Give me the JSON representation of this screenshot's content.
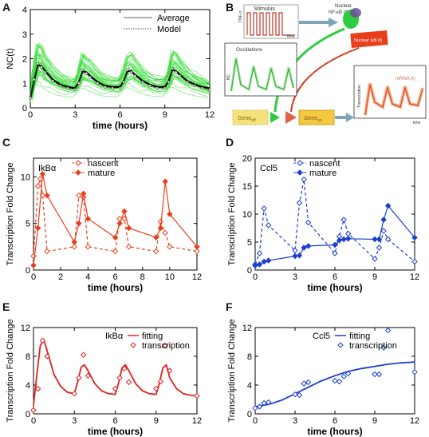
{
  "panel_letters": [
    "A",
    "B",
    "C",
    "D",
    "E",
    "F"
  ],
  "chart_data": [
    {
      "id": "A",
      "type": "line",
      "ylabel": "NC(t)",
      "xlabel": "time (hours)",
      "xlim": [
        0,
        12
      ],
      "ylim": [
        0,
        4
      ],
      "xticks": [
        0,
        3,
        6,
        9,
        12
      ],
      "yticks": [
        0,
        1,
        2,
        3,
        4
      ],
      "series": [
        {
          "name": "Average",
          "color": "#000000",
          "x": [
            0,
            0.25,
            0.5,
            0.75,
            1,
            1.5,
            2,
            2.5,
            3,
            3.25,
            3.5,
            3.75,
            4,
            4.5,
            5,
            5.5,
            6,
            6.25,
            6.5,
            6.75,
            7,
            7.5,
            8,
            8.5,
            9,
            9.25,
            9.5,
            9.75,
            10,
            10.5,
            11,
            11.5,
            12
          ],
          "y": [
            0.4,
            1.1,
            1.75,
            1.7,
            1.5,
            1.15,
            0.95,
            0.85,
            0.8,
            1.05,
            1.5,
            1.45,
            1.3,
            1.05,
            0.9,
            0.85,
            0.85,
            1.1,
            1.5,
            1.5,
            1.35,
            1.1,
            0.95,
            0.85,
            0.85,
            1.1,
            1.55,
            1.5,
            1.35,
            1.1,
            0.95,
            0.85,
            0.8
          ]
        },
        {
          "name": "Model",
          "color": "#555555",
          "x": [
            0,
            0.25,
            0.5,
            0.75,
            1,
            1.5,
            2,
            2.5,
            3,
            3.25,
            3.5,
            3.75,
            4,
            4.5,
            5,
            5.5,
            6,
            6.25,
            6.5,
            6.75,
            7,
            7.5,
            8,
            8.5,
            9,
            9.25,
            9.5,
            9.75,
            10,
            10.5,
            11,
            11.5,
            12
          ],
          "y": [
            0.4,
            1.15,
            1.8,
            1.65,
            1.45,
            1.1,
            0.9,
            0.8,
            0.75,
            1.0,
            1.55,
            1.4,
            1.25,
            1.0,
            0.85,
            0.8,
            0.8,
            1.05,
            1.55,
            1.45,
            1.3,
            1.05,
            0.9,
            0.8,
            0.8,
            1.05,
            1.6,
            1.45,
            1.3,
            1.05,
            0.9,
            0.8,
            0.75
          ]
        }
      ],
      "trace_color": "#33dd33",
      "trace_count": 36
    },
    {
      "id": "C",
      "type": "line",
      "title_text": "IkBα",
      "ylabel": "Transcription Fold Change",
      "xlabel": "time (hours)",
      "xlim": [
        0,
        12
      ],
      "ylim": [
        0,
        12
      ],
      "xticks": [
        0,
        2,
        4,
        6,
        8,
        10,
        12
      ],
      "yticks": [
        0,
        5,
        10
      ],
      "color": "#e8401c",
      "series": [
        {
          "name": "nascent",
          "style": "dashed",
          "marker": "open-diamond",
          "x": [
            0,
            0.33,
            0.5,
            0.67,
            1,
            3,
            3.33,
            3.67,
            4,
            6,
            6.33,
            6.67,
            7,
            9,
            9.33,
            9.67,
            10,
            12
          ],
          "y": [
            1.5,
            9.0,
            9.8,
            8.0,
            2.0,
            2.5,
            8.0,
            7.8,
            2.5,
            2.0,
            5.5,
            5.5,
            2.5,
            2.0,
            5.2,
            4.0,
            2.5,
            2.0
          ]
        },
        {
          "name": "mature",
          "style": "solid",
          "marker": "filled-diamond",
          "x": [
            0,
            0.33,
            0.67,
            1,
            3,
            3.33,
            3.67,
            4,
            6,
            6.33,
            6.67,
            7,
            9,
            9.33,
            9.67,
            10,
            12
          ],
          "y": [
            0.5,
            4.5,
            10.3,
            8.0,
            3.0,
            5.0,
            8.2,
            5.5,
            3.5,
            5.0,
            6.3,
            4.5,
            3.5,
            4.5,
            9.5,
            6.0,
            2.5
          ]
        }
      ]
    },
    {
      "id": "D",
      "type": "line",
      "title_text": "Ccl5",
      "ylabel": "Transcription Fold Change",
      "xlabel": "time (hours)",
      "xlim": [
        0,
        12
      ],
      "ylim": [
        0,
        20
      ],
      "xticks": [
        0,
        3,
        6,
        9,
        12
      ],
      "yticks": [
        0,
        5,
        10,
        15,
        20
      ],
      "color": "#1c3fd0",
      "series": [
        {
          "name": "nascent",
          "style": "dashed",
          "marker": "open-diamond",
          "x": [
            0,
            0.33,
            0.67,
            1,
            3,
            3.33,
            3.67,
            4,
            6,
            6.33,
            6.67,
            7,
            9,
            9.33,
            9.67,
            10,
            12
          ],
          "y": [
            1.0,
            3.0,
            11.0,
            8.0,
            3.5,
            12.0,
            16.2,
            8.5,
            3.0,
            6.0,
            9.0,
            6.5,
            2.0,
            4.0,
            7.0,
            5.5,
            1.5
          ]
        },
        {
          "name": "mature",
          "style": "solid",
          "marker": "filled-diamond",
          "x": [
            0,
            0.33,
            0.67,
            1,
            3,
            3.33,
            3.67,
            4,
            6,
            6.33,
            6.67,
            7,
            9,
            9.33,
            9.67,
            10,
            12
          ],
          "y": [
            0.8,
            1.0,
            1.5,
            1.7,
            2.5,
            2.6,
            4.0,
            4.3,
            4.5,
            5.3,
            5.5,
            5.6,
            5.5,
            5.5,
            9.0,
            11.5,
            5.8
          ]
        }
      ]
    },
    {
      "id": "E",
      "type": "line",
      "title_text": "IkBα",
      "ylabel": "Transcription Fold Change",
      "xlabel": "time (hours)",
      "xlim": [
        0,
        12
      ],
      "ylim": [
        0,
        12
      ],
      "xticks": [
        0,
        3,
        6,
        9,
        12
      ],
      "yticks": [
        0,
        4,
        8,
        12
      ],
      "color": "#e02020",
      "series": [
        {
          "name": "fitting",
          "style": "solid",
          "x": [
            0,
            0.25,
            0.5,
            0.75,
            1,
            1.5,
            2,
            2.5,
            3,
            3.25,
            3.5,
            3.75,
            4,
            4.5,
            5,
            5.5,
            6,
            6.25,
            6.5,
            6.75,
            7,
            7.5,
            8,
            8.5,
            9,
            9.25,
            9.5,
            9.75,
            10,
            10.5,
            11,
            11.5,
            12
          ],
          "y": [
            1.2,
            5.5,
            9.5,
            10.3,
            8.8,
            5.5,
            3.8,
            3.0,
            2.8,
            4.5,
            6.5,
            6.8,
            6.0,
            4.2,
            3.2,
            2.8,
            2.7,
            4.3,
            6.4,
            6.8,
            6.0,
            4.2,
            3.2,
            2.8,
            2.7,
            4.3,
            6.4,
            6.8,
            5.0,
            3.5,
            2.8,
            2.6,
            2.5
          ]
        },
        {
          "name": "transcription",
          "style": "none",
          "marker": "open-diamond",
          "x": [
            0,
            0.33,
            0.67,
            1,
            3,
            3.33,
            3.67,
            4,
            6,
            6.33,
            6.67,
            7,
            9,
            9.33,
            9.67,
            10,
            12
          ],
          "y": [
            0.5,
            3.5,
            10.2,
            8.0,
            2.8,
            5.0,
            8.2,
            5.3,
            3.5,
            5.0,
            6.3,
            4.4,
            3.5,
            4.5,
            9.5,
            6.0,
            2.5
          ]
        }
      ]
    },
    {
      "id": "F",
      "type": "line",
      "title_text": "Ccl5",
      "ylabel": "Transcription Fold Change",
      "xlabel": "time (hours)",
      "xlim": [
        0,
        12
      ],
      "ylim": [
        0,
        12
      ],
      "xticks": [
        0,
        3,
        6,
        9,
        12
      ],
      "yticks": [
        0,
        4,
        8,
        12
      ],
      "color": "#1c3fd0",
      "series": [
        {
          "name": "fitting",
          "style": "solid",
          "x": [
            0,
            1,
            2,
            3,
            4,
            5,
            6,
            7,
            8,
            9,
            10,
            11,
            12
          ],
          "y": [
            1.0,
            1.3,
            1.9,
            2.8,
            3.7,
            4.6,
            5.3,
            5.9,
            6.3,
            6.6,
            6.9,
            7.1,
            7.2
          ]
        },
        {
          "name": "transcription",
          "style": "none",
          "marker": "open-diamond",
          "x": [
            0,
            0.33,
            0.67,
            1,
            3,
            3.33,
            3.67,
            4,
            6,
            6.33,
            6.67,
            7,
            9,
            9.33,
            9.67,
            10,
            12
          ],
          "y": [
            0.8,
            1.0,
            1.5,
            1.6,
            2.7,
            2.6,
            4.2,
            4.4,
            4.6,
            4.5,
            5.2,
            5.6,
            5.5,
            5.5,
            9.2,
            11.6,
            5.8
          ]
        }
      ]
    }
  ],
  "diagram_b": {
    "stimulus_label": "Stimulus",
    "tnf_label": "TNF-α",
    "time_label": "time",
    "nuclear_nfkb_label": "Nuclear NF-κB (t)",
    "nuclear_ikb_label": "Nuclear IκB (t)",
    "oscillations_label": "Oscillations",
    "nc_label": "NC",
    "mrna_label": "mRNA (t)",
    "transcription_axis_label": "Transcription",
    "gene_off_label": "Gene",
    "gene_off_sub": "off",
    "gene_on_label": "Gene",
    "gene_on_sub": "on",
    "colors": {
      "stimulus": "#c0392b",
      "nfkb": "#2ecc40",
      "ikb": "#e8401c",
      "gene": "#f5c842",
      "arrow": "#7fa3b8"
    }
  }
}
